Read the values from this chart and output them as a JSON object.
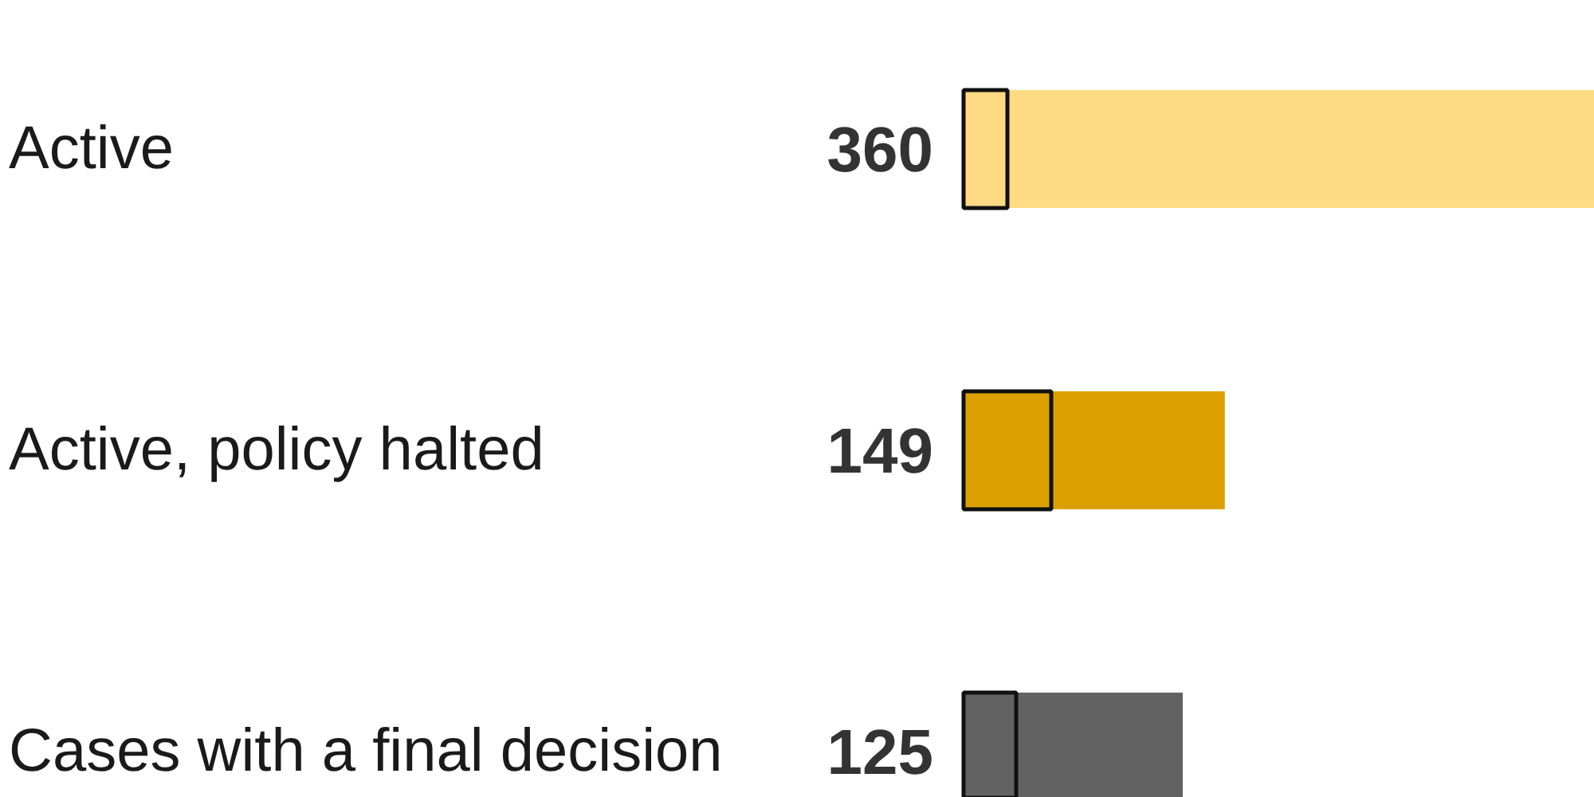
{
  "chart_data": {
    "type": "bar",
    "orientation": "horizontal",
    "tick_labels": "y",
    "categories": [
      "Active",
      "Active, policy halted",
      "Cases with a final decision"
    ],
    "series": [
      {
        "colors": [
          "#ffda85",
          "#dca100",
          "#636363"
        ],
        "values": [
          360,
          149,
          125
        ],
        "value_labels": [
          "360",
          "149",
          "125"
        ]
      },
      {
        "color": "#111111",
        "values": [
          25,
          50,
          30
        ]
      }
    ]
  }
}
